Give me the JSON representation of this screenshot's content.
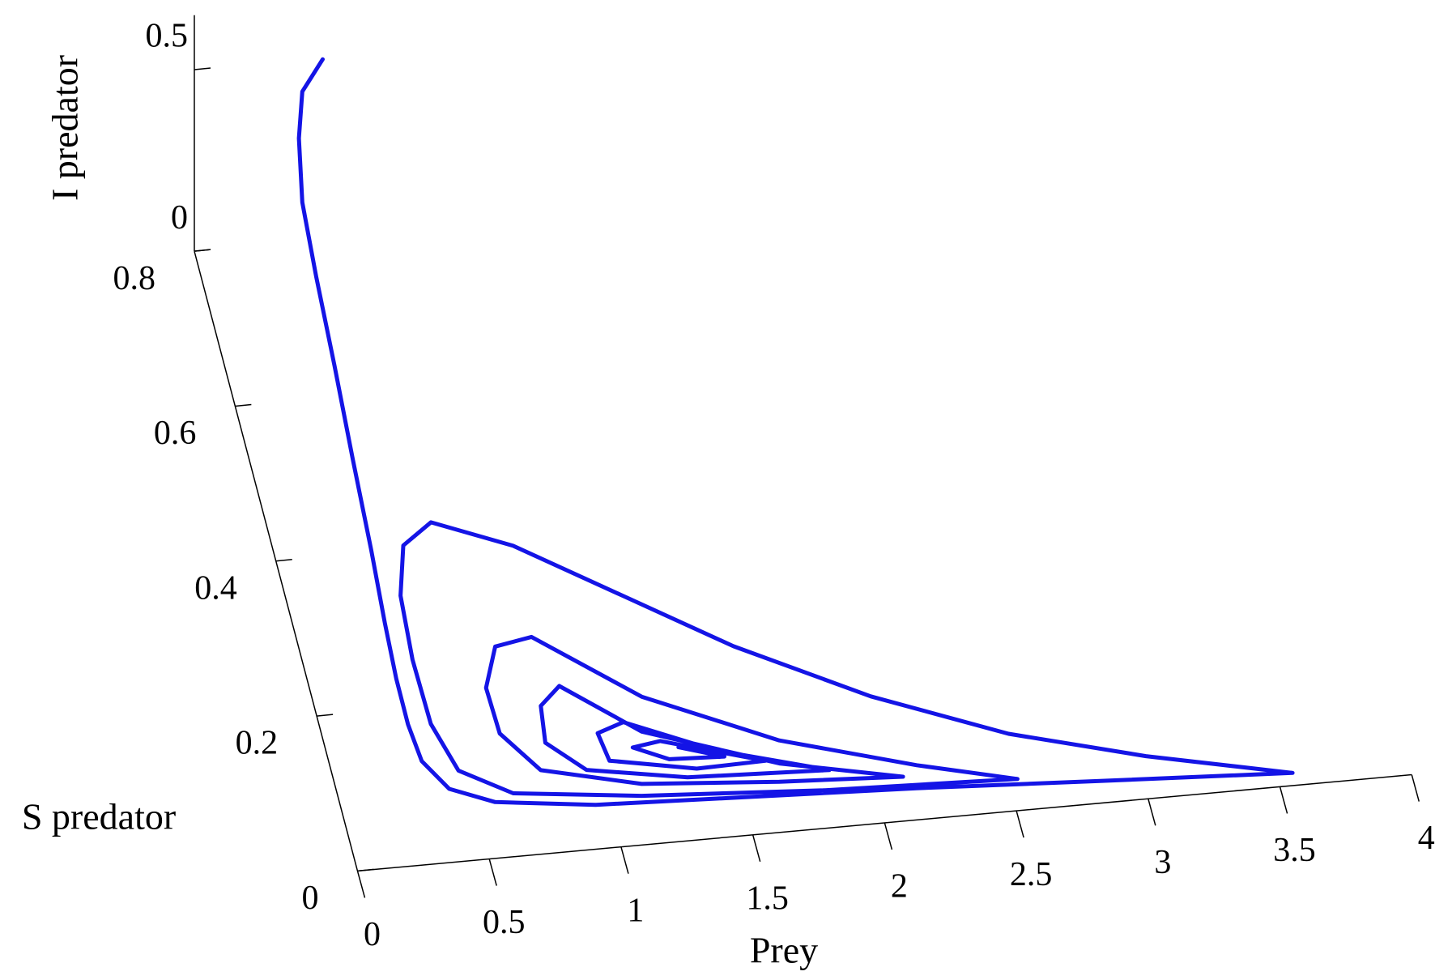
{
  "chart_data": {
    "type": "line3d",
    "x_label": "Prey",
    "y_label": "S predator",
    "z_label": "I predator",
    "xlim": [
      0,
      4
    ],
    "ylim": [
      0,
      0.8
    ],
    "zlim": [
      0,
      0.65
    ],
    "xticks": [
      0,
      0.5,
      1,
      1.5,
      2,
      2.5,
      3,
      3.5,
      4
    ],
    "yticks": [
      0,
      0.2,
      0.4,
      0.6,
      0.8
    ],
    "zticks": [
      0,
      0.5
    ],
    "series": [
      {
        "color": "#1414e6",
        "x": [
          0.539,
          0.453,
          0.416,
          0.391,
          0.395,
          0.39,
          0.377,
          0.364,
          0.343,
          0.331,
          0.33,
          0.345,
          0.42,
          0.577,
          0.947,
          1.464,
          2.152,
          2.839,
          3.56,
          3.033,
          2.546,
          2.072,
          1.612,
          1.253,
          0.894,
          0.612,
          0.487,
          0.428,
          0.41,
          0.415,
          0.472,
          0.653,
          1.126,
          1.811,
          2.535,
          2.175,
          1.69,
          1.223,
          0.873,
          0.729,
          0.655,
          0.661,
          0.777,
          1.138,
          1.65,
          2.113,
          1.668,
          1.189,
          0.928,
          0.84,
          0.821,
          0.947,
          1.314,
          1.847,
          1.443,
          1.13,
          1.024,
          1.041,
          1.357,
          1.619,
          1.248,
          1.14,
          1.264,
          1.471,
          1.31
        ],
        "y": [
          0.867,
          0.856,
          0.825,
          0.776,
          0.713,
          0.617,
          0.51,
          0.403,
          0.309,
          0.238,
          0.179,
          0.131,
          0.093,
          0.071,
          0.056,
          0.049,
          0.04,
          0.028,
          0.016,
          0.054,
          0.098,
          0.161,
          0.24,
          0.316,
          0.392,
          0.431,
          0.405,
          0.342,
          0.26,
          0.177,
          0.115,
          0.08,
          0.062,
          0.048,
          0.04,
          0.069,
          0.116,
          0.187,
          0.275,
          0.267,
          0.216,
          0.157,
          0.106,
          0.077,
          0.064,
          0.056,
          0.087,
          0.143,
          0.21,
          0.187,
          0.14,
          0.101,
          0.08,
          0.073,
          0.111,
          0.157,
          0.146,
          0.11,
          0.09,
          0.092,
          0.129,
          0.124,
          0.105,
          0.102,
          0.119
        ],
        "z": [
          0.35,
          0.29,
          0.23,
          0.16,
          0.09,
          0.05,
          0.02,
          0,
          0,
          0,
          0,
          0,
          0,
          0,
          0,
          0,
          0,
          0,
          0,
          0,
          0,
          0,
          0,
          0,
          0,
          0,
          0,
          0,
          0,
          0,
          0,
          0,
          0,
          0,
          0,
          0,
          0,
          0,
          0,
          0,
          0,
          0,
          0,
          0,
          0,
          0,
          0,
          0,
          0,
          0,
          0,
          0,
          0,
          0,
          0,
          0,
          0,
          0,
          0,
          0,
          0,
          0,
          0,
          0,
          0
        ]
      }
    ]
  }
}
